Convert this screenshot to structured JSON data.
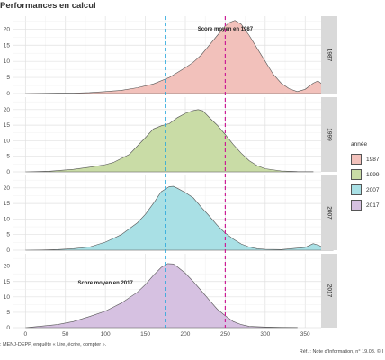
{
  "page": {
    "title": "Performances en calcul",
    "source": ": MENJ-DEPP, enquête « Lire, écrire, compter ».",
    "reference": "Réf. : Note d'Information, n° 19.08. © I"
  },
  "legend": {
    "title": "année",
    "items": [
      {
        "label": "1987",
        "color": "#f2c1bb"
      },
      {
        "label": "1999",
        "color": "#c9dca6"
      },
      {
        "label": "2007",
        "color": "#a9e0e5"
      },
      {
        "label": "2017",
        "color": "#d6c1e1"
      }
    ]
  },
  "chart_data": {
    "type": "area",
    "title": "Performances en calcul",
    "xlabel": "",
    "ylabel": "",
    "xlim": [
      -15,
      370
    ],
    "ylim": [
      0,
      24
    ],
    "x_ticks": [
      "0",
      "50",
      "100",
      "150",
      "200",
      "250",
      "300",
      "350"
    ],
    "y_ticks": [
      "0",
      "5",
      "10",
      "15",
      "20"
    ],
    "grid": true,
    "legend_position": "right",
    "facet_strip": "right",
    "vlines": [
      {
        "x": 175,
        "color": "#29a8dc",
        "style": "dashed"
      },
      {
        "x": 250,
        "color": "#cc1f96",
        "style": "dashed"
      }
    ],
    "panels": [
      {
        "strip": "1987",
        "color": "#f2c1bb",
        "annotation": {
          "text": "Score moyen en 1987",
          "x": 250,
          "y": 19.5
        },
        "points": [
          [
            0,
            0
          ],
          [
            20,
            0.05
          ],
          [
            40,
            0.1
          ],
          [
            60,
            0.15
          ],
          [
            80,
            0.3
          ],
          [
            100,
            0.6
          ],
          [
            120,
            1.0
          ],
          [
            140,
            1.8
          ],
          [
            160,
            3.0
          ],
          [
            180,
            5.0
          ],
          [
            200,
            8.0
          ],
          [
            210,
            9.7
          ],
          [
            220,
            12.0
          ],
          [
            230,
            15.0
          ],
          [
            240,
            18.0
          ],
          [
            250,
            21.0
          ],
          [
            255,
            22.0
          ],
          [
            262,
            22.7
          ],
          [
            270,
            21.5
          ],
          [
            280,
            18.0
          ],
          [
            290,
            14.0
          ],
          [
            300,
            10.0
          ],
          [
            310,
            6.0
          ],
          [
            320,
            3.2
          ],
          [
            330,
            1.5
          ],
          [
            340,
            0.6
          ],
          [
            350,
            1.3
          ],
          [
            360,
            3.2
          ],
          [
            366,
            3.9
          ],
          [
            373,
            2.6
          ],
          [
            380,
            0.8
          ],
          [
            385,
            0.2
          ]
        ]
      },
      {
        "strip": "1999",
        "color": "#c9dca6",
        "annotation": null,
        "points": [
          [
            0,
            0
          ],
          [
            30,
            0.2
          ],
          [
            60,
            0.8
          ],
          [
            80,
            1.5
          ],
          [
            100,
            2.3
          ],
          [
            110,
            3.0
          ],
          [
            130,
            5.6
          ],
          [
            150,
            11.0
          ],
          [
            160,
            13.8
          ],
          [
            170,
            14.8
          ],
          [
            180,
            15.5
          ],
          [
            190,
            17.4
          ],
          [
            200,
            18.8
          ],
          [
            210,
            19.7
          ],
          [
            216,
            20.0
          ],
          [
            222,
            19.6
          ],
          [
            230,
            17.5
          ],
          [
            240,
            15.0
          ],
          [
            250,
            12.0
          ],
          [
            260,
            8.8
          ],
          [
            270,
            6.0
          ],
          [
            280,
            3.6
          ],
          [
            290,
            2.0
          ],
          [
            300,
            1.0
          ],
          [
            320,
            0.3
          ],
          [
            340,
            0.1
          ],
          [
            360,
            0.05
          ]
        ]
      },
      {
        "strip": "2007",
        "color": "#a9e0e5",
        "annotation": null,
        "points": [
          [
            0,
            0
          ],
          [
            20,
            0.05
          ],
          [
            40,
            0.2
          ],
          [
            60,
            0.5
          ],
          [
            80,
            1.0
          ],
          [
            100,
            2.6
          ],
          [
            120,
            5.0
          ],
          [
            140,
            8.8
          ],
          [
            150,
            11.5
          ],
          [
            160,
            15.0
          ],
          [
            170,
            18.8
          ],
          [
            180,
            20.4
          ],
          [
            185,
            20.5
          ],
          [
            190,
            19.9
          ],
          [
            200,
            18.5
          ],
          [
            210,
            16.8
          ],
          [
            220,
            13.8
          ],
          [
            230,
            11.0
          ],
          [
            240,
            8.0
          ],
          [
            250,
            5.5
          ],
          [
            260,
            3.6
          ],
          [
            270,
            2.0
          ],
          [
            280,
            1.0
          ],
          [
            290,
            0.5
          ],
          [
            300,
            0.3
          ],
          [
            320,
            0.2
          ],
          [
            350,
            0.9
          ],
          [
            360,
            2.1
          ],
          [
            367,
            1.6
          ],
          [
            375,
            0.5
          ],
          [
            385,
            0.1
          ]
        ]
      },
      {
        "strip": "2017",
        "color": "#d6c1e1",
        "annotation": {
          "text": "Score moyen en 2017",
          "x": 100,
          "y": 14
        },
        "points": [
          [
            0,
            0
          ],
          [
            20,
            0.5
          ],
          [
            40,
            1.0
          ],
          [
            60,
            2.0
          ],
          [
            80,
            3.6
          ],
          [
            100,
            5.4
          ],
          [
            120,
            8.0
          ],
          [
            140,
            11.5
          ],
          [
            150,
            14.0
          ],
          [
            160,
            17.0
          ],
          [
            170,
            19.6
          ],
          [
            178,
            20.8
          ],
          [
            185,
            20.7
          ],
          [
            190,
            19.8
          ],
          [
            200,
            17.7
          ],
          [
            210,
            15.0
          ],
          [
            220,
            12.0
          ],
          [
            230,
            9.0
          ],
          [
            240,
            6.0
          ],
          [
            250,
            3.9
          ],
          [
            260,
            2.0
          ],
          [
            270,
            1.0
          ],
          [
            280,
            0.4
          ],
          [
            300,
            0.2
          ],
          [
            320,
            0.1
          ],
          [
            340,
            0.05
          ]
        ]
      }
    ]
  }
}
